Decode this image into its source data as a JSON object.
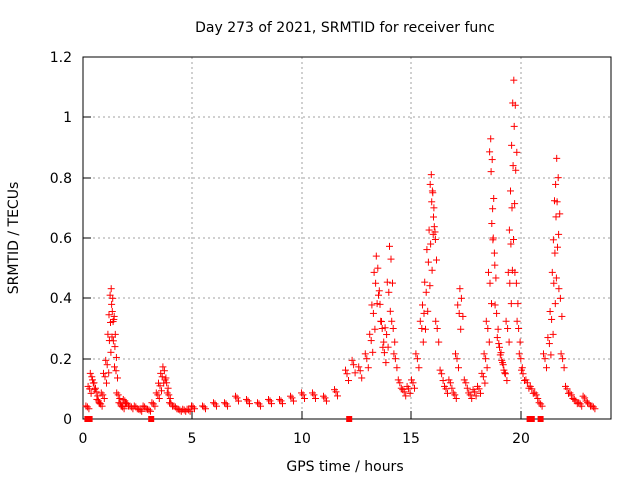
{
  "chart_data": {
    "type": "scatter",
    "title": "Day 273 of 2021, SRMTID for receiver func",
    "xlabel": "GPS time / hours",
    "ylabel": "SRMTID / TECUs",
    "xlim": [
      0,
      24
    ],
    "ylim": [
      0,
      1.2
    ],
    "xticks": [
      "0",
      "5",
      "10",
      "15",
      "20"
    ],
    "yticks": [
      "0",
      "0.2",
      "0.4",
      "0.6",
      "0.8",
      "1",
      "1.2"
    ],
    "grid": true,
    "marker": "+",
    "color": "#ff0000",
    "series": [
      {
        "name": "SRMTID",
        "x": [
          0.2,
          0.3,
          0.4,
          0.5,
          0.6,
          0.7,
          0.8,
          0.9,
          1.0,
          1.1,
          1.2,
          1.25,
          1.3,
          1.35,
          1.4,
          1.45,
          1.5,
          1.6,
          1.7,
          1.8,
          1.9,
          2.0,
          2.2,
          2.4,
          2.6,
          2.8,
          3.0,
          3.2,
          3.4,
          3.5,
          3.6,
          3.7,
          3.8,
          3.9,
          4.0,
          4.2,
          4.4,
          4.6,
          4.8,
          5.0,
          5.5,
          6.0,
          6.5,
          7.0,
          7.5,
          8.0,
          8.5,
          9.0,
          9.5,
          10.0,
          10.5,
          11.0,
          11.5,
          12.0,
          12.3,
          12.6,
          12.9,
          13.1,
          13.2,
          13.3,
          13.4,
          13.5,
          13.6,
          13.7,
          13.8,
          13.9,
          14.0,
          14.1,
          14.2,
          14.4,
          14.6,
          14.8,
          15.0,
          15.2,
          15.4,
          15.5,
          15.6,
          15.7,
          15.8,
          15.85,
          15.9,
          15.95,
          16.0,
          16.1,
          16.3,
          16.5,
          16.7,
          16.9,
          17.0,
          17.1,
          17.2,
          17.4,
          17.6,
          17.8,
          18.0,
          18.2,
          18.3,
          18.4,
          18.5,
          18.55,
          18.6,
          18.65,
          18.7,
          18.8,
          18.9,
          19.0,
          19.1,
          19.2,
          19.3,
          19.4,
          19.45,
          19.5,
          19.55,
          19.6,
          19.65,
          19.7,
          19.8,
          19.9,
          20.0,
          20.2,
          20.4,
          20.6,
          20.8,
          21.0,
          21.2,
          21.3,
          21.4,
          21.45,
          21.5,
          21.55,
          21.6,
          21.7,
          21.8,
          22.0,
          22.2,
          22.4,
          22.6,
          22.8,
          23.0,
          23.2
        ],
        "y": [
          0.04,
          0.1,
          0.14,
          0.12,
          0.09,
          0.06,
          0.05,
          0.08,
          0.14,
          0.18,
          0.26,
          0.32,
          0.38,
          0.4,
          0.33,
          0.24,
          0.16,
          0.08,
          0.05,
          0.04,
          0.06,
          0.05,
          0.04,
          0.04,
          0.03,
          0.04,
          0.03,
          0.05,
          0.08,
          0.11,
          0.14,
          0.16,
          0.12,
          0.08,
          0.05,
          0.04,
          0.03,
          0.03,
          0.03,
          0.04,
          0.04,
          0.05,
          0.05,
          0.07,
          0.06,
          0.05,
          0.06,
          0.06,
          0.07,
          0.08,
          0.08,
          0.07,
          0.09,
          0.15,
          0.18,
          0.16,
          0.2,
          0.26,
          0.35,
          0.45,
          0.5,
          0.38,
          0.3,
          0.22,
          0.28,
          0.42,
          0.53,
          0.3,
          0.2,
          0.12,
          0.09,
          0.1,
          0.12,
          0.2,
          0.3,
          0.35,
          0.42,
          0.52,
          0.58,
          0.72,
          0.75,
          0.7,
          0.62,
          0.3,
          0.15,
          0.1,
          0.12,
          0.08,
          0.2,
          0.35,
          0.4,
          0.12,
          0.08,
          0.09,
          0.1,
          0.14,
          0.2,
          0.3,
          0.45,
          0.82,
          0.86,
          0.6,
          0.55,
          0.35,
          0.25,
          0.22,
          0.18,
          0.15,
          0.3,
          0.45,
          0.58,
          0.7,
          0.84,
          0.97,
          1.04,
          0.45,
          0.3,
          0.2,
          0.15,
          0.12,
          0.1,
          0.08,
          0.05,
          0.2,
          0.25,
          0.33,
          0.45,
          0.55,
          0.67,
          0.72,
          0.8,
          0.4,
          0.2,
          0.1,
          0.08,
          0.06,
          0.05,
          0.07,
          0.05,
          0.04
        ],
        "baseline_x": [
          0.2,
          0.3,
          3.1,
          12.1,
          20.3,
          20.4,
          20.8
        ]
      }
    ]
  }
}
